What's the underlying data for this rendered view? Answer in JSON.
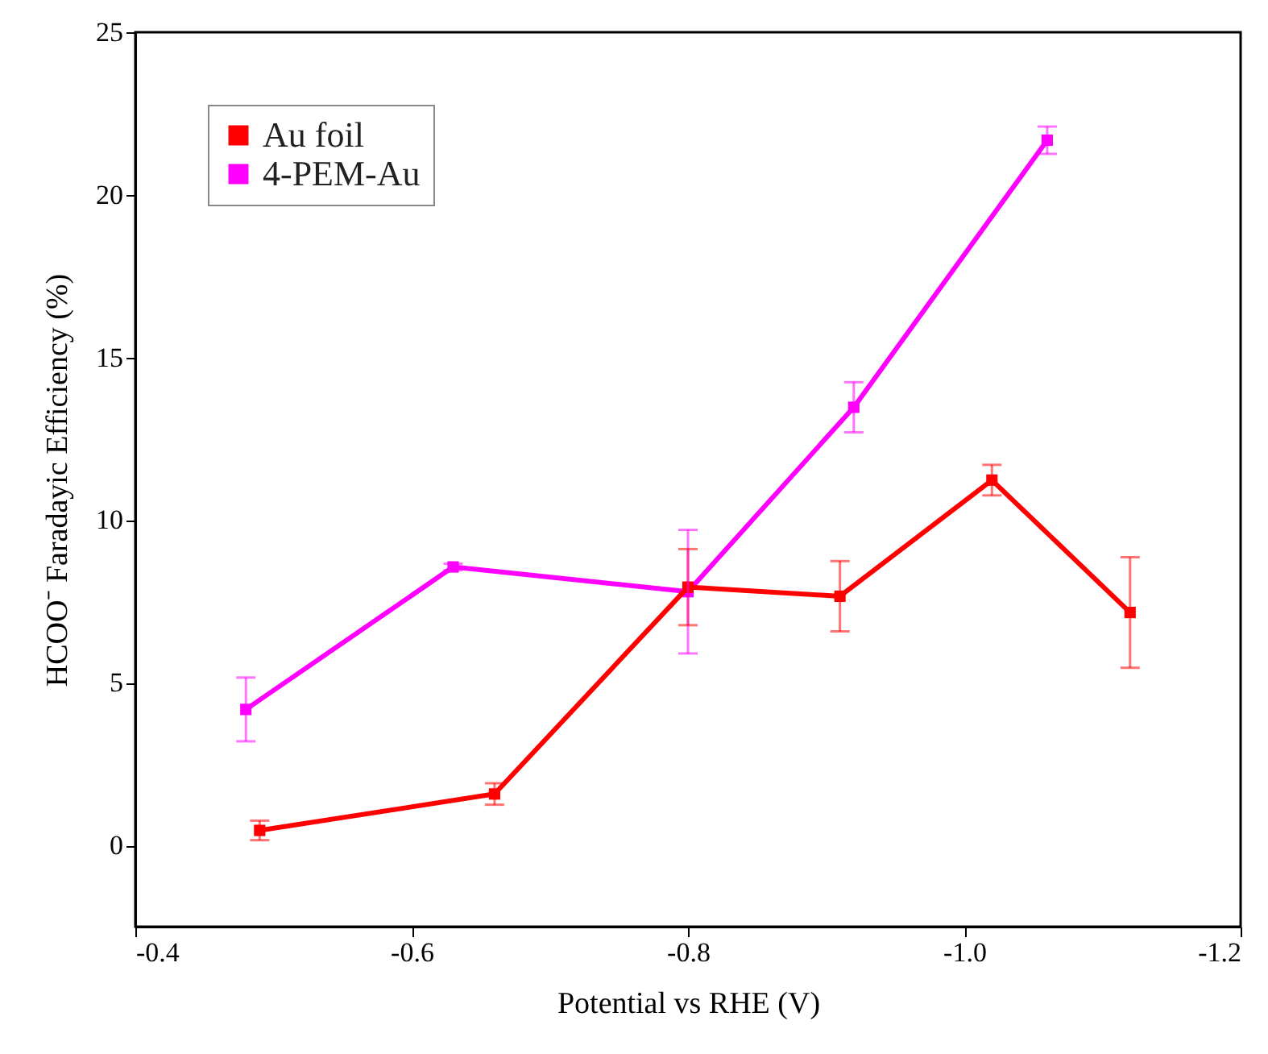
{
  "chart_data": {
    "type": "line",
    "xlabel": "Potential vs RHE (V)",
    "ylabel": "HCOO⁻ Faradayic Efficiency (%)",
    "xlim": [
      -0.4,
      -1.2
    ],
    "xticks": [
      -0.4,
      -0.6,
      -0.8,
      {
        "value": -1,
        "label": "-1.0"
      },
      -1.2
    ],
    "ylim": [
      -2.5,
      25
    ],
    "yticks": [
      0,
      5,
      10,
      15,
      20,
      25
    ],
    "legend": "top left",
    "marker": "square",
    "grid": false,
    "series": [
      {
        "name": "Au foil",
        "color": "#ff0000",
        "x": [
          -0.49,
          -0.66,
          -0.8,
          -0.91,
          -1.02,
          -1.12
        ],
        "values": [
          0.46,
          1.58,
          7.94,
          7.66,
          11.23,
          7.16
        ],
        "errors": [
          0.3,
          0.33,
          1.17,
          1.08,
          0.47,
          1.7
        ]
      },
      {
        "name": "4-PEM-Au",
        "color": "#ff00ff",
        "x": [
          -0.48,
          -0.63,
          -0.8,
          -0.92,
          -1.06
        ],
        "values": [
          4.18,
          8.56,
          7.8,
          13.47,
          21.68
        ],
        "errors": [
          0.98,
          0.1,
          1.9,
          0.77,
          0.42
        ]
      }
    ]
  }
}
